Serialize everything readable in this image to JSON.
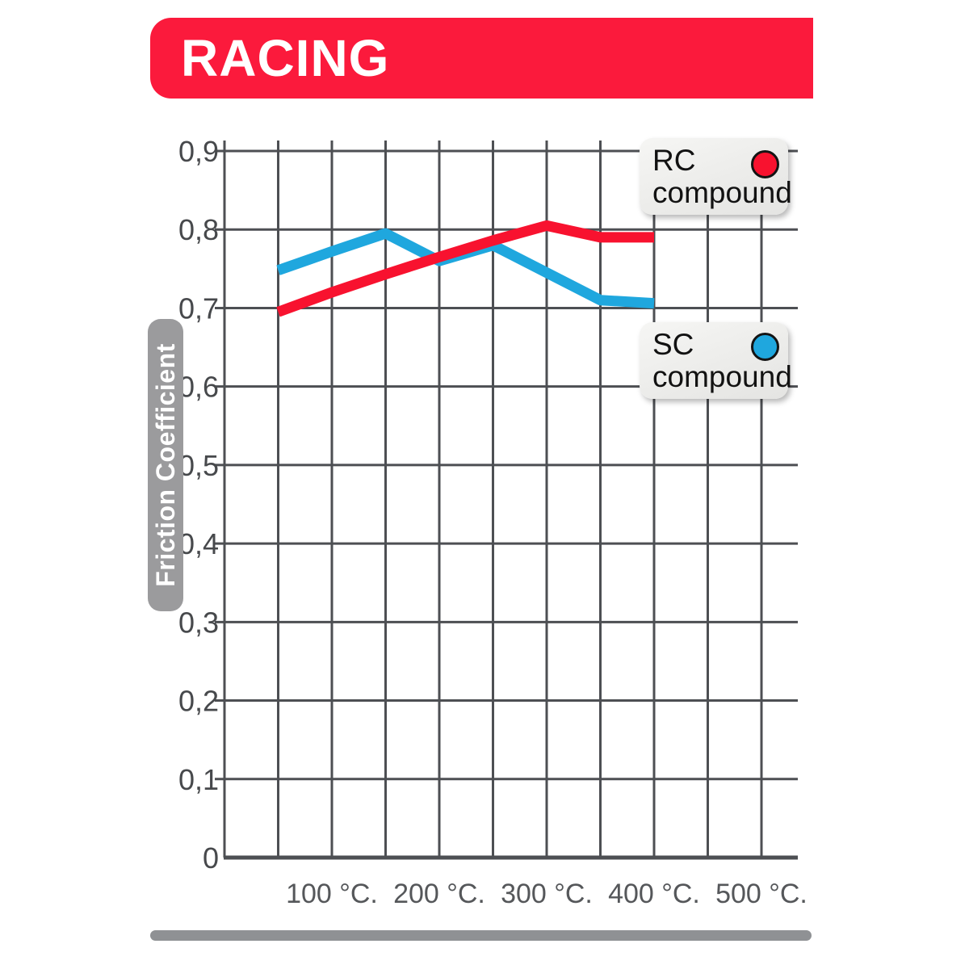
{
  "header": {
    "title": "RACING",
    "banner_color": "#fb1a3c"
  },
  "legend": {
    "rc": {
      "title": "RC",
      "subtitle": "compound",
      "dot_color": "#f8122f"
    },
    "sc": {
      "title": "SC",
      "subtitle": "compound",
      "dot_color": "#1fa7de"
    }
  },
  "footer": {
    "divider_color": "#8f9194"
  },
  "chart_data": {
    "type": "line",
    "title": "",
    "xlabel": "",
    "ylabel": "Friction Coefficient",
    "xlim": [
      0,
      500
    ],
    "ylim": [
      0,
      0.9
    ],
    "grid": {
      "on": true,
      "x_step_c": 50,
      "y_step": 0.1,
      "color": "#4d4f53"
    },
    "legend_position": "inside-right",
    "x_ticks": [
      {
        "t": 100,
        "label": "100 °C."
      },
      {
        "t": 200,
        "label": "200 °C."
      },
      {
        "t": 300,
        "label": "300 °C."
      },
      {
        "t": 400,
        "label": "400 °C."
      },
      {
        "t": 500,
        "label": "500 °C."
      }
    ],
    "y_ticks": [
      {
        "v": 0.9,
        "label": "0,9"
      },
      {
        "v": 0.8,
        "label": "0,8"
      },
      {
        "v": 0.7,
        "label": "0,7"
      },
      {
        "v": 0.6,
        "label": "0,6"
      },
      {
        "v": 0.5,
        "label": "0,5"
      },
      {
        "v": 0.4,
        "label": "0,4"
      },
      {
        "v": 0.3,
        "label": "0,3"
      },
      {
        "v": 0.2,
        "label": "0,2"
      },
      {
        "v": 0.1,
        "label": "0,1"
      },
      {
        "v": 0,
        "label": "0"
      }
    ],
    "series": [
      {
        "name": "SC compound",
        "color": "#1fa7de",
        "points": [
          [
            50,
            0.748
          ],
          [
            100,
            0.772
          ],
          [
            150,
            0.795
          ],
          [
            200,
            0.76
          ],
          [
            250,
            0.78
          ],
          [
            300,
            0.745
          ],
          [
            350,
            0.71
          ],
          [
            400,
            0.706
          ]
        ]
      },
      {
        "name": "RC compound",
        "color": "#f8122f",
        "points": [
          [
            50,
            0.695
          ],
          [
            100,
            0.72
          ],
          [
            150,
            0.743
          ],
          [
            200,
            0.765
          ],
          [
            250,
            0.786
          ],
          [
            300,
            0.805
          ],
          [
            350,
            0.79
          ],
          [
            400,
            0.79
          ]
        ]
      }
    ]
  }
}
